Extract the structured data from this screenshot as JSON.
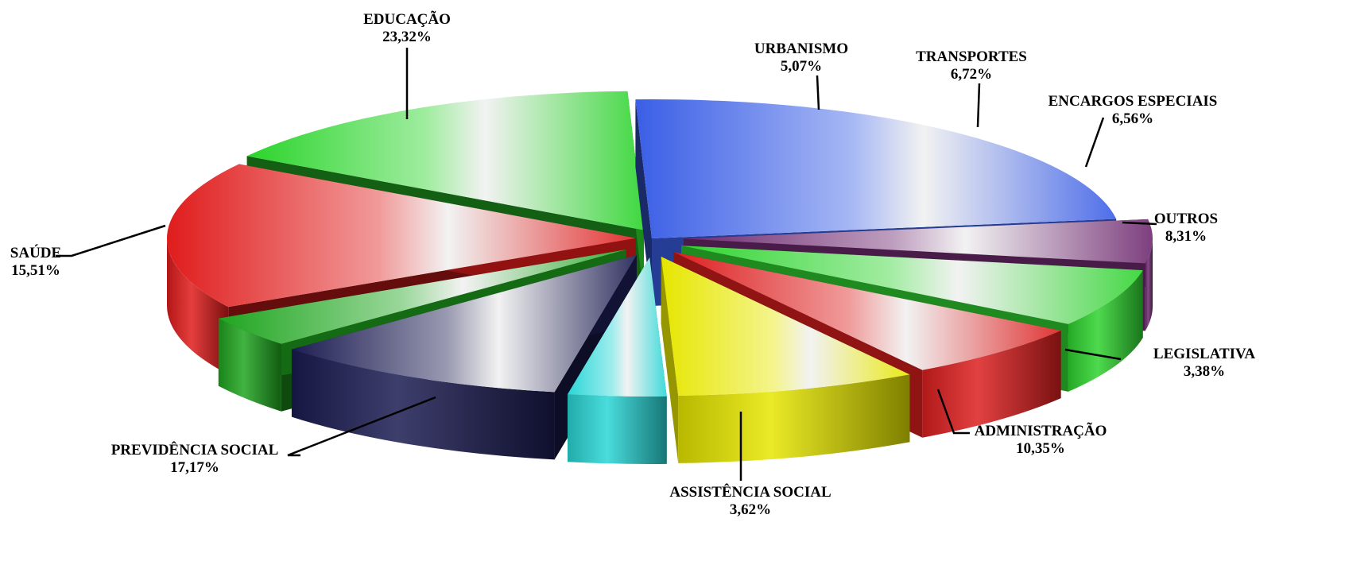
{
  "chart_data": {
    "type": "pie",
    "title": "",
    "categories": [
      "EDUCAÇÃO",
      "URBANISMO",
      "TRANSPORTES",
      "ENCARGOS ESPECIAIS",
      "OUTROS",
      "LEGISLATIVA",
      "ADMINISTRAÇÃO",
      "ASSISTÊNCIA SOCIAL",
      "PREVIDÊNCIA SOCIAL",
      "SAÚDE"
    ],
    "values": [
      23.32,
      5.07,
      6.72,
      6.56,
      8.31,
      3.38,
      10.35,
      3.62,
      17.17,
      15.51
    ],
    "value_labels": [
      "23,32%",
      "5,07%",
      "6,72%",
      "6,56%",
      "8,31%",
      "3,38%",
      "10,35%",
      "3,62%",
      "17,17%",
      "15,51%"
    ],
    "colors": [
      "#3a5ee6",
      "#6e2a70",
      "#2fd42f",
      "#dd1f1f",
      "#e6e600",
      "#2ad6d6",
      "#1c1c52",
      "#1fa51f",
      "#e01c1c",
      "#2ad42a"
    ],
    "exploded": true,
    "three_d": true
  }
}
